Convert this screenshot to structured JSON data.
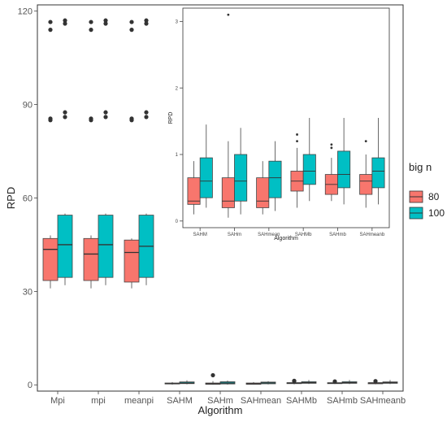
{
  "chart_data": [
    {
      "type": "box",
      "xlabel": "Algorithm",
      "ylabel": "RPD",
      "ylim": [
        -2,
        122
      ],
      "yticks": [
        0,
        30,
        60,
        90,
        120
      ],
      "categories": [
        "Mpi",
        "mpi",
        "meanpi",
        "SAHM",
        "SAHm",
        "SAHmean",
        "SAHMb",
        "SAHmb",
        "SAHmeanb"
      ],
      "grid": false,
      "legend": {
        "title": "big n",
        "position": "right",
        "entries": [
          {
            "name": "80",
            "color": "#F8766D"
          },
          {
            "name": "100",
            "color": "#00BFC4"
          }
        ]
      },
      "series": [
        {
          "name": "80",
          "color": "#F8766D",
          "boxes": [
            {
              "min": 31,
              "q1": 33.5,
              "median": 43.5,
              "q3": 47,
              "max": 48,
              "outliers": [
                85,
                85.5,
                114,
                116.5
              ]
            },
            {
              "min": 31,
              "q1": 33.5,
              "median": 42,
              "q3": 47,
              "max": 48,
              "outliers": [
                85,
                85.5,
                114,
                116.5
              ]
            },
            {
              "min": 31,
              "q1": 33,
              "median": 42.5,
              "q3": 46.5,
              "max": 47,
              "outliers": [
                85,
                85.5,
                114,
                116.5
              ]
            },
            {
              "min": 0.1,
              "q1": 0.3,
              "median": 0.4,
              "q3": 0.6,
              "max": 0.9,
              "outliers": []
            },
            {
              "min": 0.05,
              "q1": 0.2,
              "median": 0.3,
              "q3": 0.6,
              "max": 1.2,
              "outliers": [
                3.1
              ]
            },
            {
              "min": 0.1,
              "q1": 0.2,
              "median": 0.3,
              "q3": 0.6,
              "max": 0.9,
              "outliers": []
            },
            {
              "min": 0.2,
              "q1": 0.4,
              "median": 0.6,
              "q3": 0.7,
              "max": 1.1,
              "outliers": [
                1.2,
                1.3
              ]
            },
            {
              "min": 0.3,
              "q1": 0.4,
              "median": 0.55,
              "q3": 0.7,
              "max": 0.95,
              "outliers": [
                1.1
              ]
            },
            {
              "min": 0.2,
              "q1": 0.35,
              "median": 0.6,
              "q3": 0.7,
              "max": 1.0,
              "outliers": [
                1.2
              ]
            }
          ]
        },
        {
          "name": "100",
          "color": "#00BFC4",
          "boxes": [
            {
              "min": 32,
              "q1": 34.5,
              "median": 45,
              "q3": 54.5,
              "max": 55,
              "outliers": [
                86,
                87.5,
                116,
                117
              ]
            },
            {
              "min": 32,
              "q1": 34.5,
              "median": 45,
              "q3": 54.5,
              "max": 55,
              "outliers": [
                86,
                87.5,
                116,
                117
              ]
            },
            {
              "min": 32,
              "q1": 34.5,
              "median": 44.5,
              "q3": 54.5,
              "max": 55,
              "outliers": [
                86,
                87.5,
                116,
                117
              ]
            },
            {
              "min": 0.2,
              "q1": 0.4,
              "median": 0.6,
              "q3": 0.95,
              "max": 1.45,
              "outliers": []
            },
            {
              "min": 0.1,
              "q1": 0.3,
              "median": 0.6,
              "q3": 1.0,
              "max": 1.4,
              "outliers": []
            },
            {
              "min": 0.15,
              "q1": 0.35,
              "median": 0.65,
              "q3": 0.9,
              "max": 1.2,
              "outliers": []
            },
            {
              "min": 0.3,
              "q1": 0.5,
              "median": 0.75,
              "q3": 1.0,
              "max": 1.55,
              "outliers": []
            },
            {
              "min": 0.25,
              "q1": 0.5,
              "median": 0.7,
              "q3": 1.0,
              "max": 1.55,
              "outliers": []
            },
            {
              "min": 0.25,
              "q1": 0.5,
              "median": 0.75,
              "q3": 0.95,
              "max": 1.55,
              "outliers": []
            }
          ]
        }
      ]
    },
    {
      "type": "box",
      "inset": true,
      "xlabel": "Algorithm",
      "ylabel": "RPD",
      "ylim": [
        -0.1,
        3.2
      ],
      "yticks": [
        0,
        1,
        2,
        3
      ],
      "categories": [
        "SAHM",
        "SAHm",
        "SAHmean",
        "SAHMb",
        "SAHmb",
        "SAHmeanb"
      ],
      "grid": false,
      "series": [
        {
          "name": "80",
          "color": "#F8766D",
          "boxes": [
            {
              "min": 0.1,
              "q1": 0.25,
              "median": 0.3,
              "q3": 0.65,
              "max": 0.9,
              "outliers": []
            },
            {
              "min": 0.05,
              "q1": 0.2,
              "median": 0.3,
              "q3": 0.65,
              "max": 1.2,
              "outliers": [
                3.1
              ]
            },
            {
              "min": 0.1,
              "q1": 0.2,
              "median": 0.3,
              "q3": 0.65,
              "max": 0.9,
              "outliers": []
            },
            {
              "min": 0.2,
              "q1": 0.45,
              "median": 0.6,
              "q3": 0.75,
              "max": 1.1,
              "outliers": [
                1.2,
                1.3
              ]
            },
            {
              "min": 0.3,
              "q1": 0.4,
              "median": 0.55,
              "q3": 0.7,
              "max": 0.95,
              "outliers": [
                1.1,
                1.15
              ]
            },
            {
              "min": 0.2,
              "q1": 0.4,
              "median": 0.6,
              "q3": 0.7,
              "max": 1.0,
              "outliers": [
                1.2
              ]
            }
          ]
        },
        {
          "name": "100",
          "color": "#00BFC4",
          "boxes": [
            {
              "min": 0.2,
              "q1": 0.35,
              "median": 0.6,
              "q3": 0.95,
              "max": 1.45,
              "outliers": []
            },
            {
              "min": 0.1,
              "q1": 0.3,
              "median": 0.6,
              "q3": 1.0,
              "max": 1.4,
              "outliers": []
            },
            {
              "min": 0.15,
              "q1": 0.35,
              "median": 0.65,
              "q3": 0.9,
              "max": 1.2,
              "outliers": []
            },
            {
              "min": 0.3,
              "q1": 0.55,
              "median": 0.75,
              "q3": 1.0,
              "max": 1.55,
              "outliers": []
            },
            {
              "min": 0.25,
              "q1": 0.5,
              "median": 0.7,
              "q3": 1.05,
              "max": 1.55,
              "outliers": []
            },
            {
              "min": 0.25,
              "q1": 0.5,
              "median": 0.75,
              "q3": 0.95,
              "max": 1.55,
              "outliers": []
            }
          ]
        }
      ]
    }
  ]
}
